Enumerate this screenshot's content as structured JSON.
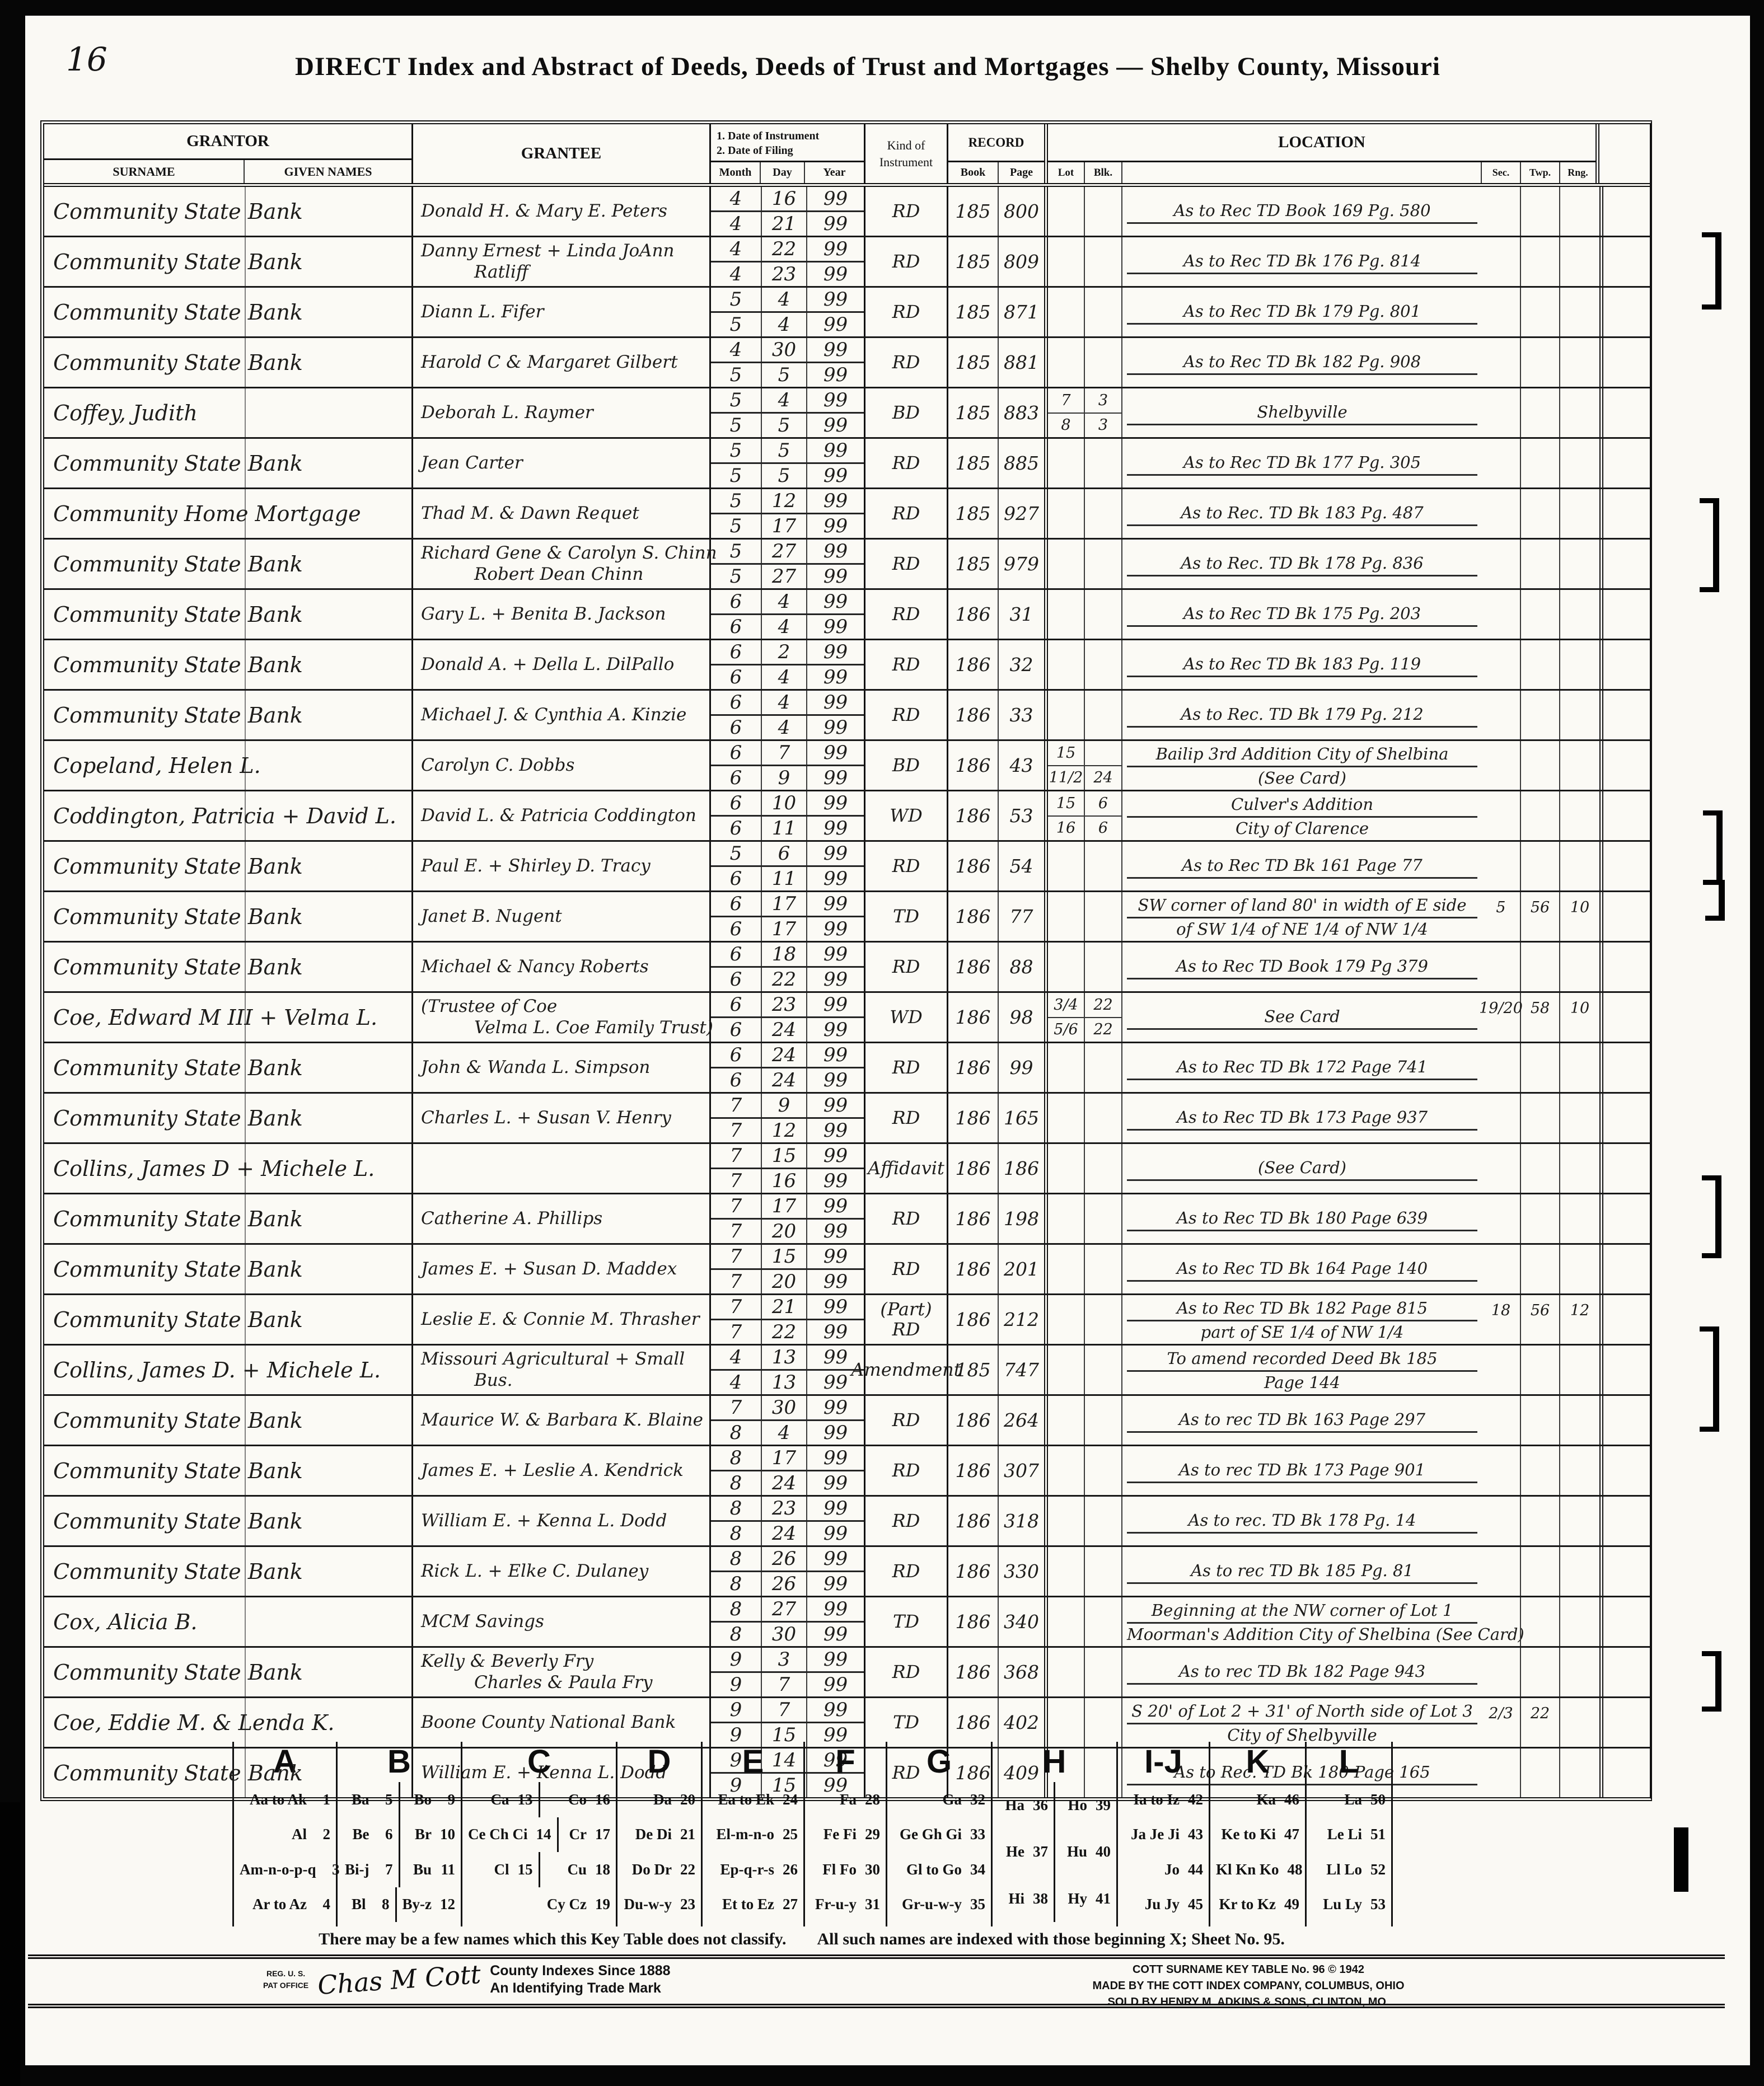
{
  "page": {
    "number": "16",
    "title": "DIRECT Index and Abstract of Deeds, Deeds of Trust and Mortgages — Shelby County, Missouri"
  },
  "headers": {
    "grantor": "GRANTOR",
    "surname": "SURNAME",
    "given": "GIVEN NAMES",
    "grantee": "GRANTEE",
    "date1": "1. Date of Instrument",
    "date2": "2. Date of Filing",
    "month": "Month",
    "day": "Day",
    "year": "Year",
    "kind1": "Kind of",
    "kind2": "Instrument",
    "record": "RECORD",
    "book": "Book",
    "page": "Page",
    "location": "LOCATION",
    "lot": "Lot",
    "blk": "Blk.",
    "sec": "Sec.",
    "twp": "Twp.",
    "rng": "Rng."
  },
  "rows": [
    {
      "g1": "Community State Bank",
      "e1": "Donald H. & Mary E. Peters",
      "m1": "4",
      "d1": "16",
      "y1": "99",
      "m2": "4",
      "d2": "21",
      "y2": "99",
      "k1": "RD",
      "bk": "185",
      "pg": "800",
      "l1": "As to Rec TD    Book 169   Pg. 580"
    },
    {
      "g1": "Community State Bank",
      "e1": "Danny Ernest + Linda JoAnn",
      "e2": "Ratliff",
      "m1": "4",
      "d1": "22",
      "y1": "99",
      "m2": "4",
      "d2": "23",
      "y2": "99",
      "k1": "RD",
      "bk": "185",
      "pg": "809",
      "l1": "As to Rec TD    Bk 176    Pg. 814"
    },
    {
      "g1": "Community State Bank",
      "e1": "Diann L. Fifer",
      "m1": "5",
      "d1": "4",
      "y1": "99",
      "m2": "5",
      "d2": "4",
      "y2": "99",
      "k1": "RD",
      "bk": "185",
      "pg": "871",
      "l1": "As to Rec TD    Bk 179    Pg. 801"
    },
    {
      "g1": "Community State Bank",
      "e1": "Harold C & Margaret Gilbert",
      "m1": "4",
      "d1": "30",
      "y1": "99",
      "m2": "5",
      "d2": "5",
      "y2": "99",
      "k1": "RD",
      "bk": "185",
      "pg": "881",
      "l1": "As to Rec TD    Bk 182    Pg. 908"
    },
    {
      "g1": "Coffey, Judith",
      "e1": "Deborah L. Raymer",
      "m1": "5",
      "d1": "4",
      "y1": "99",
      "m2": "5",
      "d2": "5",
      "y2": "99",
      "k1": "BD",
      "bk": "185",
      "pg": "883",
      "lot1": "7",
      "blk1": "3",
      "lot2": "8",
      "blk2": "3",
      "l1": "Shelbyville"
    },
    {
      "g1": "Community State Bank",
      "e1": "Jean Carter",
      "m1": "5",
      "d1": "5",
      "y1": "99",
      "m2": "5",
      "d2": "5",
      "y2": "99",
      "k1": "RD",
      "bk": "185",
      "pg": "885",
      "l1": "As to Rec TD    Bk 177    Pg. 305"
    },
    {
      "g1": "Community Home Mortgage",
      "e1": "Thad M. & Dawn Requet",
      "m1": "5",
      "d1": "12",
      "y1": "99",
      "m2": "5",
      "d2": "17",
      "y2": "99",
      "k1": "RD",
      "bk": "185",
      "pg": "927",
      "l1": "As to Rec. TD    Bk 183    Pg. 487"
    },
    {
      "g1": "Community State Bank",
      "e1": "Richard Gene & Carolyn S. Chinn",
      "e2": "Robert Dean Chinn",
      "m1": "5",
      "d1": "27",
      "y1": "99",
      "m2": "5",
      "d2": "27",
      "y2": "99",
      "k1": "RD",
      "bk": "185",
      "pg": "979",
      "l1": "As to Rec.   TD    Bk 178    Pg. 836"
    },
    {
      "g1": "Community State Bank",
      "e1": "Gary L. + Benita B. Jackson",
      "m1": "6",
      "d1": "4",
      "y1": "99",
      "m2": "6",
      "d2": "4",
      "y2": "99",
      "k1": "RD",
      "bk": "186",
      "pg": "31",
      "l1": "As to Rec   TD    Bk 175   Pg. 203"
    },
    {
      "g1": "Community State Bank",
      "e1": "Donald A. + Della L. DilPallo",
      "m1": "6",
      "d1": "2",
      "y1": "99",
      "m2": "6",
      "d2": "4",
      "y2": "99",
      "k1": "RD",
      "bk": "186",
      "pg": "32",
      "l1": "As to Rec TD    Bk 183   Pg. 119"
    },
    {
      "g1": "Community State Bank",
      "e1": "Michael J. & Cynthia A. Kinzie",
      "m1": "6",
      "d1": "4",
      "y1": "99",
      "m2": "6",
      "d2": "4",
      "y2": "99",
      "k1": "RD",
      "bk": "186",
      "pg": "33",
      "l1": "As to Rec. TD   Bk 179   Pg. 212"
    },
    {
      "g1": "Copeland, Helen L.",
      "e1": "Carolyn C. Dobbs",
      "m1": "6",
      "d1": "7",
      "y1": "99",
      "m2": "6",
      "d2": "9",
      "y2": "99",
      "k1": "BD",
      "bk": "186",
      "pg": "43",
      "lot1": "15",
      "lot2": "11/2",
      "blk2": "24",
      "l1": "Bailip 3rd Addition     City of Shelbina",
      "l2": "(See Card)"
    },
    {
      "g1": "Coddington, Patricia + David L.",
      "e1": "David L. & Patricia Coddington",
      "m1": "6",
      "d1": "10",
      "y1": "99",
      "m2": "6",
      "d2": "11",
      "y2": "99",
      "k1": "WD",
      "bk": "186",
      "pg": "53",
      "lot1": "15",
      "blk1": "6",
      "lot2": "16",
      "blk2": "6",
      "l1": "Culver's Addition",
      "l2": "City of Clarence"
    },
    {
      "g1": "Community State Bank",
      "e1": "Paul E. + Shirley D. Tracy",
      "m1": "5",
      "d1": "6",
      "y1": "99",
      "m2": "6",
      "d2": "11",
      "y2": "99",
      "k1": "RD",
      "bk": "186",
      "pg": "54",
      "l1": "As to Rec TD    Bk 161   Page 77"
    },
    {
      "g1": "Community State Bank",
      "e1": "Janet B. Nugent",
      "m1": "6",
      "d1": "17",
      "y1": "99",
      "m2": "6",
      "d2": "17",
      "y2": "99",
      "k1": "TD",
      "bk": "186",
      "pg": "77",
      "l1": "SW corner of land 80' in width of E side",
      "l2": "of SW 1/4 of NE 1/4 of NW 1/4",
      "sec": "5",
      "twp": "56",
      "rng": "10"
    },
    {
      "g1": "Community State Bank",
      "e1": "Michael & Nancy Roberts",
      "m1": "6",
      "d1": "18",
      "y1": "99",
      "m2": "6",
      "d2": "22",
      "y2": "99",
      "k1": "RD",
      "bk": "186",
      "pg": "88",
      "l1": "As to Rec TD Book 179   Pg 379"
    },
    {
      "g1": "Coe, Edward M III + Velma L.",
      "e1": "(Trustee of Coe",
      "e2": "Velma L. Coe     Family Trust)",
      "m1": "6",
      "d1": "23",
      "y1": "99",
      "m2": "6",
      "d2": "24",
      "y2": "99",
      "k1": "WD",
      "bk": "186",
      "pg": "98",
      "lot1": "3/4",
      "blk1": "22",
      "lot2": "5/6",
      "blk2": "22",
      "l1": "See Card",
      "sec": "19/20",
      "twp": "58",
      "rng": "10"
    },
    {
      "g1": "Community State Bank",
      "e1": "John & Wanda L. Simpson",
      "m1": "6",
      "d1": "24",
      "y1": "99",
      "m2": "6",
      "d2": "24",
      "y2": "99",
      "k1": "RD",
      "bk": "186",
      "pg": "99",
      "l1": "As to Rec TD   Bk 172   Page 741"
    },
    {
      "g1": "Community State Bank",
      "e1": "Charles L. + Susan V. Henry",
      "m1": "7",
      "d1": "9",
      "y1": "99",
      "m2": "7",
      "d2": "12",
      "y2": "99",
      "k1": "RD",
      "bk": "186",
      "pg": "165",
      "l1": "As to Rec TD   Bk 173   Page 937"
    },
    {
      "g1": "Collins, James D + Michele L.",
      "m1": "7",
      "d1": "15",
      "y1": "99",
      "m2": "7",
      "d2": "16",
      "y2": "99",
      "k1": "Affidavit",
      "bk": "186",
      "pg": "186",
      "l1": "(See Card)"
    },
    {
      "g1": "Community State Bank",
      "e1": "Catherine A. Phillips",
      "m1": "7",
      "d1": "17",
      "y1": "99",
      "m2": "7",
      "d2": "20",
      "y2": "99",
      "k1": "RD",
      "bk": "186",
      "pg": "198",
      "l1": "As to Rec TD   Bk 180   Page 639"
    },
    {
      "g1": "Community State Bank",
      "e1": "James E. + Susan D. Maddex",
      "m1": "7",
      "d1": "15",
      "y1": "99",
      "m2": "7",
      "d2": "20",
      "y2": "99",
      "k1": "RD",
      "bk": "186",
      "pg": "201",
      "l1": "As to Rec TD   Bk 164   Page 140"
    },
    {
      "g1": "Community State Bank",
      "e1": "Leslie E. & Connie M. Thrasher",
      "m1": "7",
      "d1": "21",
      "y1": "99",
      "m2": "7",
      "d2": "22",
      "y2": "99",
      "k1": "(Part)",
      "k2": "RD",
      "bk": "186",
      "pg": "212",
      "l1": "As to Rec TD   Bk 182   Page 815",
      "l2": "part of SE 1/4 of NW 1/4",
      "sec": "18",
      "twp": "56",
      "rng": "12"
    },
    {
      "g1": "Collins, James D. + Michele L.",
      "e1": "Missouri Agricultural + Small",
      "e2": "Bus.",
      "m1": "4",
      "d1": "13",
      "y1": "99",
      "m2": "4",
      "d2": "13",
      "y2": "99",
      "k1": "Amendment",
      "bk": "185",
      "pg": "747",
      "l1": "To amend recorded Deed   Bk 185",
      "l2": "Page 144"
    },
    {
      "g1": "Community State Bank",
      "e1": "Maurice W. & Barbara K. Blaine",
      "m1": "7",
      "d1": "30",
      "y1": "99",
      "m2": "8",
      "d2": "4",
      "y2": "99",
      "k1": "RD",
      "bk": "186",
      "pg": "264",
      "l1": "As to rec TD   Bk 163   Page 297"
    },
    {
      "g1": "Community State Bank",
      "e1": "James E. + Leslie A. Kendrick",
      "m1": "8",
      "d1": "17",
      "y1": "99",
      "m2": "8",
      "d2": "24",
      "y2": "99",
      "k1": "RD",
      "bk": "186",
      "pg": "307",
      "l1": "As to rec TD   Bk 173   Page 901"
    },
    {
      "g1": "Community State Bank",
      "e1": "William E. + Kenna L. Dodd",
      "m1": "8",
      "d1": "23",
      "y1": "99",
      "m2": "8",
      "d2": "24",
      "y2": "99",
      "k1": "RD",
      "bk": "186",
      "pg": "318",
      "l1": "As to rec. TD    Bk 178   Pg. 14"
    },
    {
      "g1": "Community State Bank",
      "e1": "Rick L. + Elke C. Dulaney",
      "m1": "8",
      "d1": "26",
      "y1": "99",
      "m2": "8",
      "d2": "26",
      "y2": "99",
      "k1": "RD",
      "bk": "186",
      "pg": "330",
      "l1": "As to rec TD    Bk 185   Pg. 81"
    },
    {
      "g1": "Cox, Alicia B.",
      "e1": "MCM Savings",
      "m1": "8",
      "d1": "27",
      "y1": "99",
      "m2": "8",
      "d2": "30",
      "y2": "99",
      "k1": "TD",
      "bk": "186",
      "pg": "340",
      "l1": "Beginning at the NW corner of Lot 1",
      "l2": "Moorman's Addition  City of Shelbina  (See Card)"
    },
    {
      "g1": "Community State Bank",
      "e1": "Kelly & Beverly Fry",
      "e2": "Charles & Paula Fry",
      "m1": "9",
      "d1": "3",
      "y1": "99",
      "m2": "9",
      "d2": "7",
      "y2": "99",
      "k1": "RD",
      "bk": "186",
      "pg": "368",
      "l1": "As to rec TD   Bk 182   Page 943"
    },
    {
      "g1": "Coe, Eddie M. & Lenda K.",
      "e1": "Boone County National Bank",
      "m1": "9",
      "d1": "7",
      "y1": "99",
      "m2": "9",
      "d2": "15",
      "y2": "99",
      "k1": "TD",
      "bk": "186",
      "pg": "402",
      "l1": "S 20' of Lot 2 + 31' of North side of Lot 3",
      "l2": "City of Shelbyville",
      "sec": "2/3",
      "twp": "22"
    },
    {
      "g1": "Community State Bank",
      "e1": "William E. + Kenna L. Dodd",
      "m1": "9",
      "d1": "14",
      "y1": "99",
      "m2": "9",
      "d2": "15",
      "y2": "99",
      "k1": "RD",
      "bk": "186",
      "pg": "409",
      "l1": "As to Rec. TD   Bk 180  Page 165"
    }
  ],
  "key_table": {
    "columns": [
      {
        "letter": "A",
        "cells": [
          [
            {
              "label": "Aa to Ak",
              "num": "1"
            }
          ],
          [
            {
              "label": "Al",
              "num": "2"
            }
          ],
          [
            {
              "label": "Am-n-o-p-q",
              "num": "3"
            }
          ],
          [
            {
              "label": "Ar to Az",
              "num": "4"
            }
          ]
        ]
      },
      {
        "letter": "B",
        "cells": [
          [
            {
              "label": "Ba",
              "num": "5"
            },
            {
              "label": "Bo",
              "num": "9"
            }
          ],
          [
            {
              "label": "Be",
              "num": "6"
            },
            {
              "label": "Br",
              "num": "10"
            }
          ],
          [
            {
              "label": "Bi-j",
              "num": "7"
            },
            {
              "label": "Bu",
              "num": "11"
            }
          ],
          [
            {
              "label": "Bl",
              "num": "8"
            },
            {
              "label": "By-z",
              "num": "12"
            }
          ]
        ]
      },
      {
        "letter": "C",
        "cells": [
          [
            {
              "label": "Ca",
              "num": "13"
            },
            {
              "label": "Co",
              "num": "16"
            }
          ],
          [
            {
              "label": "Ce Ch Ci",
              "num": "14"
            },
            {
              "label": "Cr",
              "num": "17"
            }
          ],
          [
            {
              "label": "Cl",
              "num": "15"
            },
            {
              "label": "Cu",
              "num": "18"
            }
          ],
          [
            {
              "label": "Cy Cz",
              "num": "19"
            }
          ]
        ]
      },
      {
        "letter": "D",
        "cells": [
          [
            {
              "label": "Da",
              "num": "20"
            }
          ],
          [
            {
              "label": "De Di",
              "num": "21"
            }
          ],
          [
            {
              "label": "Do Dr",
              "num": "22"
            }
          ],
          [
            {
              "label": "Du-w-y",
              "num": "23"
            }
          ]
        ]
      },
      {
        "letter": "E",
        "cells": [
          [
            {
              "label": "Ea to Ek",
              "num": "24"
            }
          ],
          [
            {
              "label": "El-m-n-o",
              "num": "25"
            }
          ],
          [
            {
              "label": "Ep-q-r-s",
              "num": "26"
            }
          ],
          [
            {
              "label": "Et to Ez",
              "num": "27"
            }
          ]
        ]
      },
      {
        "letter": "F",
        "cells": [
          [
            {
              "label": "Fa",
              "num": "28"
            }
          ],
          [
            {
              "label": "Fe Fi",
              "num": "29"
            }
          ],
          [
            {
              "label": "Fl Fo",
              "num": "30"
            }
          ],
          [
            {
              "label": "Fr-u-y",
              "num": "31"
            }
          ]
        ]
      },
      {
        "letter": "G",
        "cells": [
          [
            {
              "label": "Ga",
              "num": "32"
            }
          ],
          [
            {
              "label": "Ge Gh Gi",
              "num": "33"
            }
          ],
          [
            {
              "label": "Gl to Go",
              "num": "34"
            }
          ],
          [
            {
              "label": "Gr-u-w-y",
              "num": "35"
            }
          ]
        ]
      },
      {
        "letter": "H",
        "cells": [
          [
            {
              "label": "Ha",
              "num": "36"
            },
            {
              "label": "Ho",
              "num": "39"
            }
          ],
          [
            {
              "label": "He",
              "num": "37"
            },
            {
              "label": "Hu",
              "num": "40"
            }
          ],
          [
            {
              "label": "Hi",
              "num": "38"
            },
            {
              "label": "Hy",
              "num": "41"
            }
          ]
        ]
      },
      {
        "letter": "I-J",
        "cells": [
          [
            {
              "label": "Ia to Iz",
              "num": "42"
            }
          ],
          [
            {
              "label": "Ja Je Ji",
              "num": "43"
            }
          ],
          [
            {
              "label": "Jo",
              "num": "44"
            }
          ],
          [
            {
              "label": "Ju Jy",
              "num": "45"
            }
          ]
        ]
      },
      {
        "letter": "K",
        "cells": [
          [
            {
              "label": "Ka",
              "num": "46"
            }
          ],
          [
            {
              "label": "Ke to Ki",
              "num": "47"
            }
          ],
          [
            {
              "label": "Kl Kn Ko",
              "num": "48"
            }
          ],
          [
            {
              "label": "Kr to Kz",
              "num": "49"
            }
          ]
        ]
      },
      {
        "letter": "L",
        "cells": [
          [
            {
              "label": "La",
              "num": "50"
            }
          ],
          [
            {
              "label": "Le Li",
              "num": "51"
            }
          ],
          [
            {
              "label": "Ll Lo",
              "num": "52"
            }
          ],
          [
            {
              "label": "Lu Ly",
              "num": "53"
            }
          ]
        ]
      }
    ]
  },
  "footnote": {
    "f1": "There may be a few names which this Key Table does not classify.",
    "f2": "All such names are indexed with those beginning X; Sheet No. 95."
  },
  "trademark": {
    "reg1": "REG. U. S.",
    "reg2": "PAT OFFICE",
    "sig": "Chas M Cott",
    "t1": "County Indexes Since 1888",
    "t2": "An Identifying Trade Mark"
  },
  "cott": {
    "l1": "COTT SURNAME KEY TABLE No. 96 © 1942",
    "l2": "MADE BY THE COTT INDEX COMPANY, COLUMBUS, OHIO",
    "l3": "SOLD BY HENRY M. ADKINS & SONS, CLINTON, MO."
  }
}
